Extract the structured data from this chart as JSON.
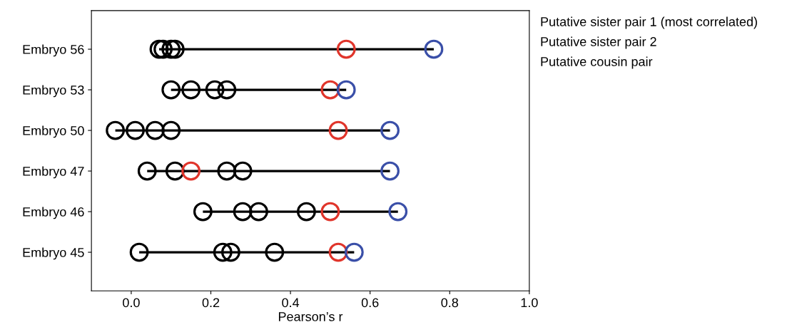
{
  "chart_data": {
    "type": "scatter",
    "orientation": "horizontal",
    "xlabel": "Pearson’s r",
    "categories": [
      "Embryo 56",
      "Embryo 53",
      "Embryo 50",
      "Embryo 47",
      "Embryo 46",
      "Embryo 45"
    ],
    "xlim": [
      -0.1,
      1.0
    ],
    "xticks": [
      {
        "value": 0,
        "label": "0.0"
      },
      0.2,
      0.4,
      0.6,
      0.8,
      {
        "value": 1,
        "label": "1.0"
      }
    ],
    "marker": "circle",
    "grid": false,
    "legend": false,
    "series": [
      {
        "color": "#000000",
        "values": [
          0.07,
          0.1,
          -0.04,
          0.04,
          0.18,
          0.02
        ]
      },
      {
        "color": "#000000",
        "values": [
          0.08,
          0.15,
          0.01,
          0.11,
          0.28,
          0.23
        ]
      },
      {
        "color": "#000000",
        "values": [
          0.1,
          0.21,
          0.06,
          0.24,
          0.32,
          0.25
        ]
      },
      {
        "color": "#000000",
        "values": [
          0.11,
          0.24,
          0.1,
          0.28,
          0.44,
          0.36
        ]
      },
      {
        "color": "#e0352b",
        "values": [
          0.54,
          0.5,
          0.52,
          0.15,
          0.5,
          0.52
        ]
      },
      {
        "color": "#3a4fa8",
        "values": [
          0.76,
          0.54,
          0.65,
          0.65,
          0.67,
          0.56
        ]
      }
    ],
    "annotations": [
      "Putative sister pair 1 (most correlated)",
      "Putative sister pair 2",
      "Putative cousin pair"
    ]
  }
}
